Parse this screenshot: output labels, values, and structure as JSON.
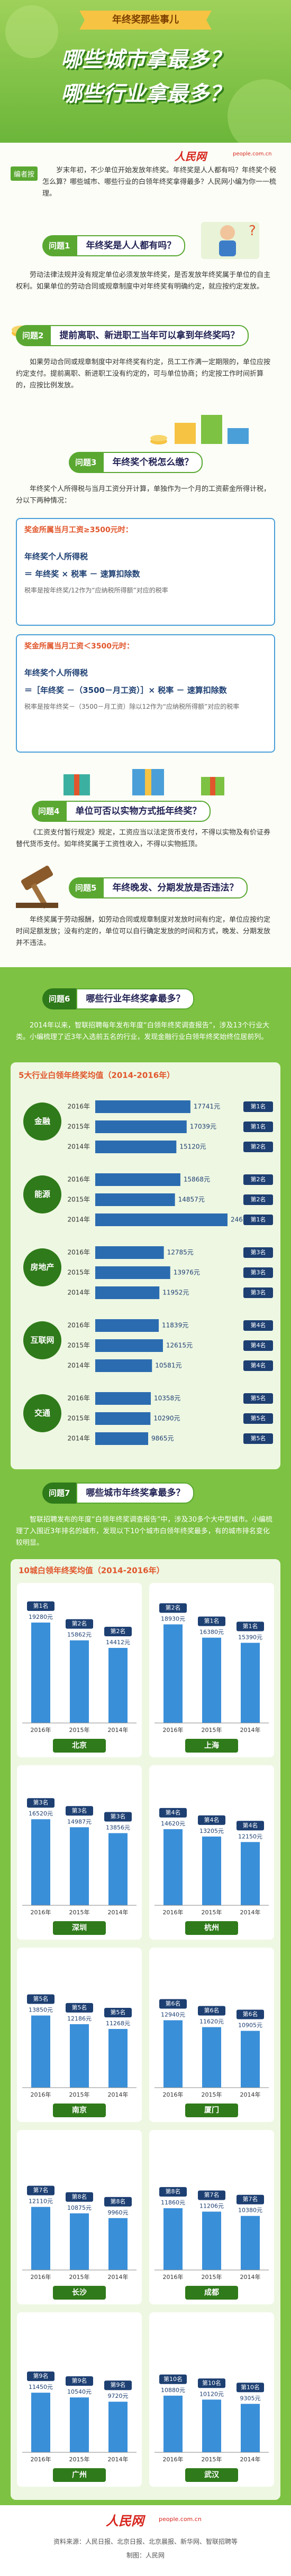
{
  "header": {
    "banner": "年终奖那些事儿",
    "title_line1": "哪些城市拿最多？",
    "title_line2": "哪些行业拿最多？"
  },
  "intro": {
    "label": "编者按",
    "logo": "人民网",
    "logo_sub": "people.com.cn",
    "text": "岁末年初，不少单位开始发放年终奖。年终奖是人人都有吗？年终奖个税怎么算？哪些城市、哪些行业的白领年终奖拿得最多？人民网小编为你一一梳理。"
  },
  "questions": [
    {
      "label": "问题1",
      "title": "年终奖是人人都有吗？",
      "answer": "劳动法律法规并没有规定单位必须发放年终奖，是否发放年终奖属于单位的自主权利。如果单位的劳动合同或规章制度中对年终奖有明确约定，就应按约定发放。"
    },
    {
      "label": "问题2",
      "title": "提前离职、新进职工当年可以拿到年终奖吗？",
      "answer": "如果劳动合同或规章制度中对年终奖有约定，员工工作满一定期限的，单位应按约定支付。提前离职、新进职工没有约定的，可与单位协商；约定按工作时间折算的，应按比例发放。"
    },
    {
      "label": "问题3",
      "title": "年终奖个税怎么缴？",
      "answer": "年终奖个人所得税与当月工资分开计算，单独作为一个月的工资薪金所得计税，分以下两种情况："
    },
    {
      "label": "问题4",
      "title": "单位可否以实物方式抵年终奖？",
      "answer": "《工资支付暂行规定》规定，工资应当以法定货币支付，不得以实物及有价证券替代货币支付。如年终奖属于工资性收入，不得以实物抵顶。"
    },
    {
      "label": "问题5",
      "title": "年终晚发、分期发放是否违法？",
      "answer": "年终奖属于劳动报酬，如劳动合同或规章制度对发放时间有约定，单位应按约定时间足额发放；没有约定的，单位可以自行确定发放的时间和方式，晚发、分期发放并不违法。"
    },
    {
      "label": "问题6",
      "title": "哪些行业年终奖拿最多？",
      "answer": "2014年以来，智联招聘每年发布年度“白领年终奖调查报告”，涉及13个行业大类。小编梳理了近3年入选前五名的行业，发现金融行业白领年终奖始终位居前列。"
    },
    {
      "label": "问题7",
      "title": "哪些城市年终奖拿最多？",
      "answer": "智联招聘发布的年度“白领年终奖调查报告”中，涉及30多个大中型城市。小编梳理了入围近3年排名的城市，发现以下10个城市白领年终奖最多，有的城市排名变化较明显。"
    }
  ],
  "tax": [
    {
      "header": "奖金所属当月工资≥3500元时：",
      "formula_left": "年终奖个人所得税",
      "formula_right": "＝ 年终奖 × 税率 － 速算扣除数",
      "note": "税率是按年终奖/12作为“应纳税所得额”对应的税率"
    },
    {
      "header": "奖金所属当月工资＜3500元时：",
      "formula_left": "年终奖个人所得税",
      "formula_right": "＝［年终奖 －（3500－月工资）］× 税率 － 速算扣除数",
      "note": "税率是按年终奖－（3500－月工资）除以12作为“应纳税所得额”对应的税率"
    }
  ],
  "industry_chart": {
    "type": "bar",
    "title": "5大行业白领年终奖均值（2014-2016年）",
    "color": "#2b6cb0",
    "years": [
      "2016年",
      "2015年",
      "2014年"
    ],
    "groups": [
      {
        "name": "金融",
        "values": [
          17741,
          17039,
          15120
        ],
        "value_labels": [
          "17741元",
          "17039元",
          "15120元"
        ],
        "ranks": [
          "第1名",
          "第1名",
          "第2名"
        ]
      },
      {
        "name": "能源",
        "values": [
          15868,
          14857,
          24655
        ],
        "value_labels": [
          "15868元",
          "14857元",
          "24655元"
        ],
        "ranks": [
          "第2名",
          "第2名",
          "第1名"
        ]
      },
      {
        "name": "房地产",
        "values": [
          12785,
          13976,
          11952
        ],
        "value_labels": [
          "12785元",
          "13976元",
          "11952元"
        ],
        "ranks": [
          "第3名",
          "第3名",
          "第3名"
        ]
      },
      {
        "name": "互联网",
        "values": [
          11839,
          12615,
          10581
        ],
        "value_labels": [
          "11839元",
          "12615元",
          "10581元"
        ],
        "ranks": [
          "第4名",
          "第4名",
          "第4名"
        ]
      },
      {
        "name": "交通",
        "values": [
          10358,
          10290,
          9865
        ],
        "value_labels": [
          "10358元",
          "10290元",
          "9865元"
        ],
        "ranks": [
          "第5名",
          "第5名",
          "第5名"
        ]
      }
    ]
  },
  "city_chart": {
    "type": "bar",
    "title": "10城白领年终奖均值（2014-2016年）",
    "color": "#3a8fd9",
    "years": [
      "2016年",
      "2015年",
      "2014年"
    ],
    "cities": [
      {
        "name": "北京",
        "values": [
          19280,
          15862,
          14412
        ],
        "value_labels": [
          "19280元",
          "15862元",
          "14412元"
        ],
        "ranks": [
          "第1名",
          "第2名",
          "第2名"
        ]
      },
      {
        "name": "上海",
        "values": [
          18930,
          16380,
          15390
        ],
        "value_labels": [
          "18930元",
          "16380元",
          "15390元"
        ],
        "ranks": [
          "第2名",
          "第1名",
          "第1名"
        ]
      },
      {
        "name": "深圳",
        "values": [
          16520,
          14987,
          13856
        ],
        "value_labels": [
          "16520元",
          "14987元",
          "13856元"
        ],
        "ranks": [
          "第3名",
          "第3名",
          "第3名"
        ]
      },
      {
        "name": "杭州",
        "values": [
          14620,
          13205,
          12150
        ],
        "value_labels": [
          "14620元",
          "13205元",
          "12150元"
        ],
        "ranks": [
          "第4名",
          "第4名",
          "第4名"
        ]
      },
      {
        "name": "南京",
        "values": [
          13850,
          12186,
          11268
        ],
        "value_labels": [
          "13850元",
          "12186元",
          "11268元"
        ],
        "ranks": [
          "第5名",
          "第5名",
          "第5名"
        ]
      },
      {
        "name": "厦门",
        "values": [
          12940,
          11620,
          10905
        ],
        "value_labels": [
          "12940元",
          "11620元",
          "10905元"
        ],
        "ranks": [
          "第6名",
          "第6名",
          "第6名"
        ]
      },
      {
        "name": "长沙",
        "values": [
          12110,
          10875,
          9960
        ],
        "value_labels": [
          "12110元",
          "10875元",
          "9960元"
        ],
        "ranks": [
          "第7名",
          "第8名",
          "第8名"
        ]
      },
      {
        "name": "成都",
        "values": [
          11860,
          11206,
          10380
        ],
        "value_labels": [
          "11860元",
          "11206元",
          "10380元"
        ],
        "ranks": [
          "第8名",
          "第7名",
          "第7名"
        ]
      },
      {
        "name": "广州",
        "values": [
          11450,
          10540,
          9720
        ],
        "value_labels": [
          "11450元",
          "10540元",
          "9720元"
        ],
        "ranks": [
          "第9名",
          "第9名",
          "第9名"
        ]
      },
      {
        "name": "武汉",
        "values": [
          10880,
          10120,
          9305
        ],
        "value_labels": [
          "10880元",
          "10120元",
          "9305元"
        ],
        "ranks": [
          "第10名",
          "第10名",
          "第10名"
        ]
      }
    ]
  },
  "footer": {
    "logo": "人民网",
    "logo_sub": "people.com.cn",
    "source": "资料来源：人民日报、北京日报、北京晨报、新华网、智联招聘等",
    "credit": "制图：人民网"
  }
}
